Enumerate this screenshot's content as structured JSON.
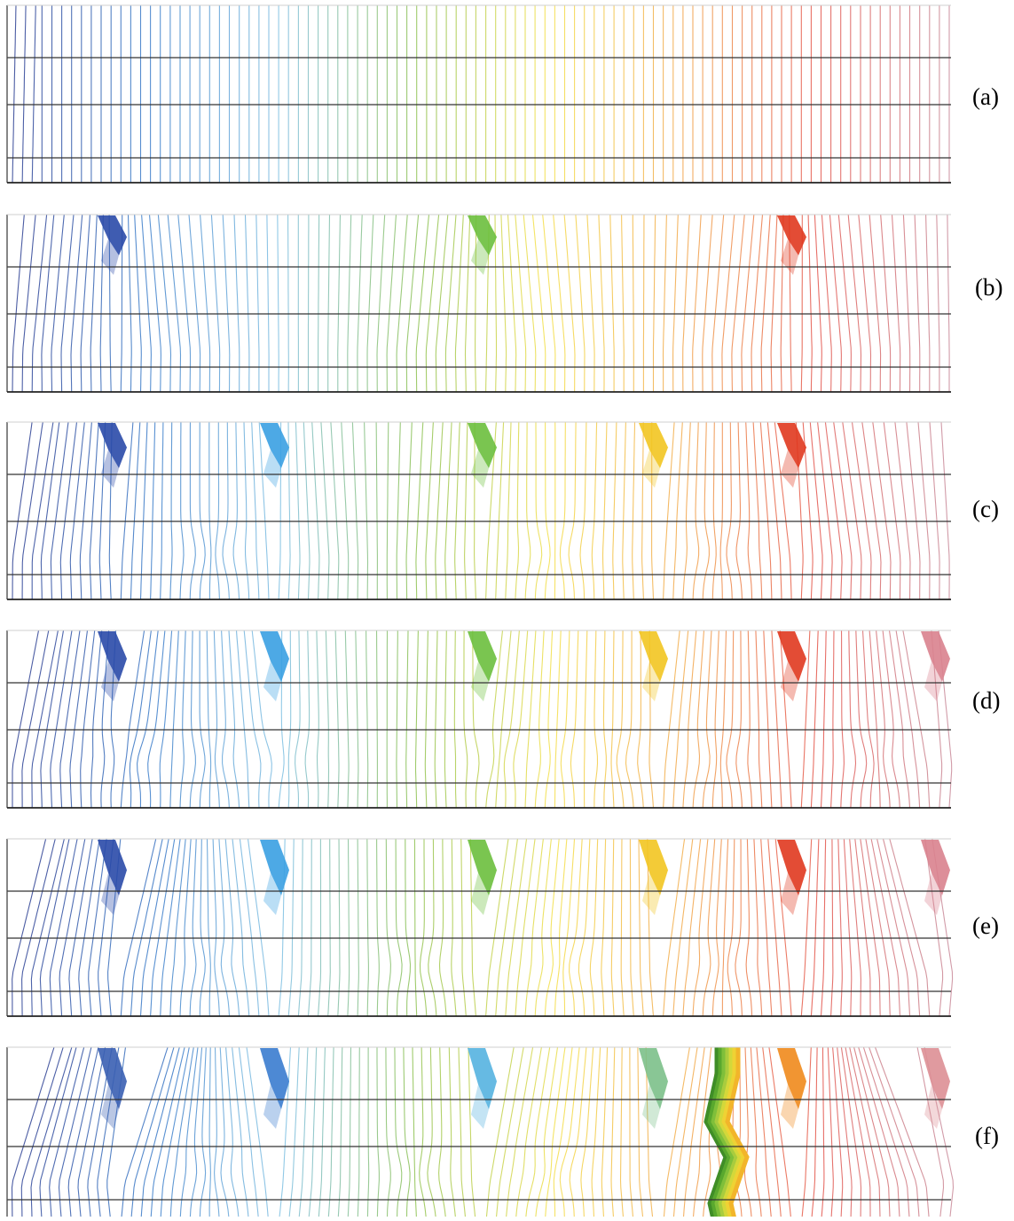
{
  "figure": {
    "panels": [
      {
        "id": "a",
        "label": "(a)",
        "cracks": [],
        "crack_stage": 0,
        "through_crack": false
      },
      {
        "id": "b",
        "label": "(b)",
        "cracks": [
          "c1",
          "c3",
          "c5"
        ],
        "crack_stage": 1,
        "through_crack": false
      },
      {
        "id": "c",
        "label": "(c)",
        "cracks": [
          "c1",
          "c2",
          "c3",
          "c4",
          "c5"
        ],
        "crack_stage": 2,
        "through_crack": false
      },
      {
        "id": "d",
        "label": "(d)",
        "cracks": [
          "c1",
          "c2",
          "c3",
          "c4",
          "c5",
          "c6"
        ],
        "crack_stage": 3,
        "through_crack": false
      },
      {
        "id": "e",
        "label": "(e)",
        "cracks": [
          "c1",
          "c2",
          "c3",
          "c4",
          "c5",
          "c6"
        ],
        "crack_stage": 4,
        "through_crack": false
      },
      {
        "id": "f",
        "label": "(f)",
        "cracks": [
          "c1",
          "c2",
          "c3",
          "c4",
          "c5",
          "c6"
        ],
        "crack_stage": 5,
        "through_crack": true
      }
    ],
    "contour_count": 96,
    "palette": [
      "#2c3f93",
      "#3a7cc9",
      "#7fc0e2",
      "#8cc152",
      "#f4e04a",
      "#f2a64b",
      "#e4544a",
      "#c98a99"
    ]
  }
}
